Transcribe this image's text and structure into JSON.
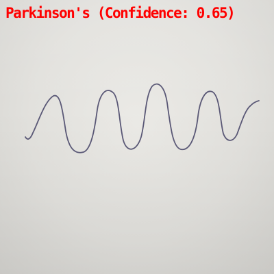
{
  "prediction": {
    "label": "Parkinson's (Confidence: 0.65)",
    "color": "#ff0000"
  },
  "drawing": {
    "subject": "hand-drawn-wave-spiral",
    "ink_color": "#5a5876",
    "paper_color": "#e6e5e1"
  }
}
